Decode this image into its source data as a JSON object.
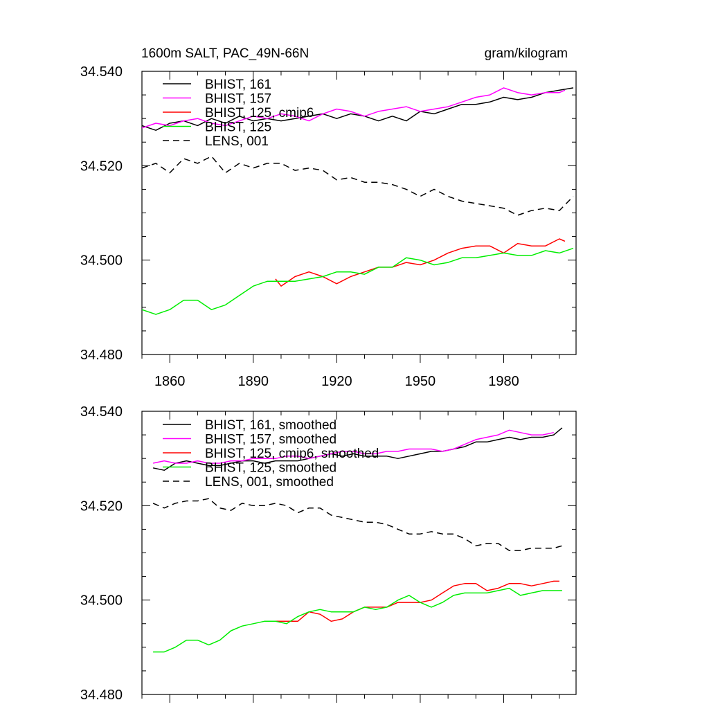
{
  "title_left": "1600m SALT, PAC_49N-66N",
  "title_right": "gram/kilogram",
  "chart_data": [
    {
      "type": "line",
      "panel": "top",
      "xlim": [
        1850,
        2006
      ],
      "ylim": [
        34.48,
        34.54
      ],
      "yticks": [
        "34.480",
        "34.500",
        "34.520",
        "34.540"
      ],
      "ytick_values": [
        34.48,
        34.5,
        34.52,
        34.54
      ],
      "xticks": [
        "1860",
        "1890",
        "1920",
        "1950",
        "1980"
      ],
      "xtick_values": [
        1860,
        1890,
        1920,
        1950,
        1980
      ],
      "show_xtick_labels": true,
      "legend_position": "top-left",
      "series": [
        {
          "name": "BHIST, 161",
          "color": "#000000",
          "dash": "solid",
          "x": [
            1850,
            1855,
            1860,
            1865,
            1870,
            1875,
            1880,
            1885,
            1890,
            1895,
            1900,
            1905,
            1910,
            1915,
            1920,
            1925,
            1930,
            1935,
            1940,
            1945,
            1950,
            1955,
            1960,
            1965,
            1970,
            1975,
            1980,
            1985,
            1990,
            1995,
            2000,
            2005
          ],
          "y": [
            34.5285,
            34.5275,
            34.529,
            34.5295,
            34.5285,
            34.53,
            34.529,
            34.5305,
            34.5295,
            34.53,
            34.5295,
            34.53,
            34.5305,
            34.531,
            34.53,
            34.531,
            34.5305,
            34.5295,
            34.5305,
            34.5295,
            34.5315,
            34.531,
            34.532,
            34.533,
            34.533,
            34.5335,
            34.5345,
            34.534,
            34.5345,
            34.5355,
            34.536,
            34.5365
          ]
        },
        {
          "name": "BHIST, 157",
          "color": "#ff00ff",
          "dash": "solid",
          "x": [
            1850,
            1855,
            1860,
            1865,
            1870,
            1875,
            1880,
            1885,
            1890,
            1895,
            1900,
            1905,
            1910,
            1915,
            1920,
            1925,
            1930,
            1935,
            1940,
            1945,
            1950,
            1955,
            1960,
            1965,
            1970,
            1975,
            1980,
            1985,
            1990,
            1995,
            2000,
            2002
          ],
          "y": [
            34.528,
            34.529,
            34.5285,
            34.5295,
            34.53,
            34.529,
            34.5285,
            34.5295,
            34.5305,
            34.53,
            34.531,
            34.5305,
            34.5295,
            34.531,
            34.532,
            34.5315,
            34.5305,
            34.5315,
            34.532,
            34.5325,
            34.5315,
            34.532,
            34.5325,
            34.5335,
            34.5345,
            34.535,
            34.5365,
            34.5355,
            34.535,
            34.5355,
            34.5355,
            34.536
          ]
        },
        {
          "name": "BHIST, 125, cmip6",
          "color": "#ff0000",
          "dash": "solid",
          "x": [
            1898,
            1900,
            1905,
            1910,
            1915,
            1920,
            1925,
            1930,
            1935,
            1940,
            1945,
            1950,
            1955,
            1960,
            1965,
            1970,
            1975,
            1980,
            1985,
            1990,
            1995,
            2000,
            2002
          ],
          "y": [
            34.496,
            34.4945,
            34.4965,
            34.4975,
            34.4965,
            34.495,
            34.4965,
            34.4975,
            34.4985,
            34.4985,
            34.4995,
            34.499,
            34.5,
            34.5015,
            34.5025,
            34.503,
            34.503,
            34.5015,
            34.5035,
            34.503,
            34.503,
            34.5045,
            34.504
          ]
        },
        {
          "name": "BHIST, 125",
          "color": "#00ee00",
          "dash": "solid",
          "x": [
            1850,
            1855,
            1860,
            1865,
            1870,
            1875,
            1880,
            1885,
            1890,
            1895,
            1900,
            1905,
            1910,
            1915,
            1920,
            1925,
            1930,
            1935,
            1940,
            1945,
            1950,
            1955,
            1960,
            1965,
            1970,
            1975,
            1980,
            1985,
            1990,
            1995,
            2000,
            2005
          ],
          "y": [
            34.4895,
            34.4885,
            34.4895,
            34.4915,
            34.4915,
            34.4895,
            34.4905,
            34.4925,
            34.4945,
            34.4955,
            34.4955,
            34.4955,
            34.496,
            34.4965,
            34.4975,
            34.4975,
            34.497,
            34.4985,
            34.4985,
            34.5005,
            34.5,
            34.499,
            34.4995,
            34.5005,
            34.5005,
            34.501,
            34.5015,
            34.501,
            34.501,
            34.502,
            34.5015,
            34.5025
          ]
        },
        {
          "name": "LENS, 001",
          "color": "#000000",
          "dash": "dashed",
          "x": [
            1850,
            1855,
            1860,
            1865,
            1870,
            1875,
            1880,
            1885,
            1890,
            1895,
            1900,
            1905,
            1910,
            1915,
            1920,
            1925,
            1930,
            1935,
            1940,
            1945,
            1950,
            1955,
            1960,
            1965,
            1970,
            1975,
            1980,
            1985,
            1990,
            1995,
            2000,
            2005
          ],
          "y": [
            34.5195,
            34.5205,
            34.5185,
            34.5215,
            34.5205,
            34.522,
            34.5185,
            34.5205,
            34.5195,
            34.5205,
            34.5205,
            34.519,
            34.5195,
            34.519,
            34.517,
            34.5175,
            34.5165,
            34.5165,
            34.516,
            34.515,
            34.5135,
            34.515,
            34.5135,
            34.5125,
            34.512,
            34.5115,
            34.511,
            34.5095,
            34.5105,
            34.511,
            34.5105,
            34.5135
          ]
        }
      ]
    },
    {
      "type": "line",
      "panel": "bottom",
      "xlim": [
        1850,
        2006
      ],
      "ylim": [
        34.48,
        34.54
      ],
      "yticks": [
        "34.480",
        "34.500",
        "34.520",
        "34.540"
      ],
      "ytick_values": [
        34.48,
        34.5,
        34.52,
        34.54
      ],
      "xticks": [
        "1860",
        "1890",
        "1920",
        "1950",
        "1980"
      ],
      "xtick_values": [
        1860,
        1890,
        1920,
        1950,
        1980
      ],
      "show_xtick_labels": false,
      "legend_position": "top-left",
      "series": [
        {
          "name": "BHIST, 161, smoothed",
          "color": "#000000",
          "dash": "solid",
          "x": [
            1854,
            1858,
            1862,
            1866,
            1870,
            1874,
            1878,
            1882,
            1886,
            1890,
            1894,
            1898,
            1902,
            1906,
            1910,
            1914,
            1918,
            1922,
            1926,
            1930,
            1934,
            1938,
            1942,
            1946,
            1950,
            1954,
            1958,
            1962,
            1966,
            1970,
            1974,
            1978,
            1982,
            1986,
            1990,
            1994,
            1998,
            2001
          ],
          "y": [
            34.528,
            34.5275,
            34.529,
            34.5295,
            34.529,
            34.5285,
            34.5285,
            34.529,
            34.5295,
            34.5295,
            34.529,
            34.5295,
            34.5295,
            34.5295,
            34.53,
            34.5305,
            34.531,
            34.5305,
            34.531,
            34.5305,
            34.5305,
            34.5305,
            34.53,
            34.5305,
            34.531,
            34.5315,
            34.5315,
            34.532,
            34.5325,
            34.5335,
            34.5335,
            34.534,
            34.5345,
            34.534,
            34.5345,
            34.5345,
            34.535,
            34.5365
          ]
        },
        {
          "name": "BHIST, 157, smoothed",
          "color": "#ff00ff",
          "dash": "solid",
          "x": [
            1854,
            1858,
            1862,
            1866,
            1870,
            1874,
            1878,
            1882,
            1886,
            1890,
            1894,
            1898,
            1902,
            1906,
            1910,
            1914,
            1918,
            1922,
            1926,
            1930,
            1934,
            1938,
            1942,
            1946,
            1950,
            1954,
            1958,
            1962,
            1966,
            1970,
            1974,
            1978,
            1982,
            1986,
            1990,
            1994,
            1998
          ],
          "y": [
            34.529,
            34.5295,
            34.529,
            34.529,
            34.5295,
            34.529,
            34.529,
            34.5295,
            34.5295,
            34.53,
            34.53,
            34.53,
            34.5305,
            34.5305,
            34.53,
            34.5305,
            34.531,
            34.5315,
            34.5315,
            34.531,
            34.531,
            34.5315,
            34.5315,
            34.532,
            34.532,
            34.532,
            34.5315,
            34.532,
            34.533,
            34.534,
            34.5345,
            34.535,
            34.536,
            34.5355,
            34.535,
            34.535,
            34.5355
          ]
        },
        {
          "name": "BHIST, 125, cmip6, smoothed",
          "color": "#ff0000",
          "dash": "solid",
          "x": [
            1898,
            1902,
            1906,
            1910,
            1914,
            1918,
            1922,
            1926,
            1930,
            1934,
            1938,
            1942,
            1946,
            1950,
            1954,
            1958,
            1962,
            1966,
            1970,
            1974,
            1978,
            1982,
            1986,
            1990,
            1994,
            1998,
            2000
          ],
          "y": [
            34.4955,
            34.4955,
            34.4955,
            34.4975,
            34.497,
            34.4955,
            34.496,
            34.4975,
            34.4985,
            34.4985,
            34.4985,
            34.4995,
            34.4995,
            34.4995,
            34.5,
            34.5015,
            34.503,
            34.5035,
            34.5035,
            34.502,
            34.5025,
            34.5035,
            34.5035,
            34.503,
            34.5035,
            34.504,
            34.504
          ]
        },
        {
          "name": "BHIST, 125, smoothed",
          "color": "#00ee00",
          "dash": "solid",
          "x": [
            1854,
            1858,
            1862,
            1866,
            1870,
            1874,
            1878,
            1882,
            1886,
            1890,
            1894,
            1898,
            1902,
            1906,
            1910,
            1914,
            1918,
            1922,
            1926,
            1930,
            1934,
            1938,
            1942,
            1946,
            1950,
            1954,
            1958,
            1962,
            1966,
            1970,
            1974,
            1978,
            1982,
            1986,
            1990,
            1994,
            1998,
            2001
          ],
          "y": [
            34.489,
            34.489,
            34.49,
            34.4915,
            34.4915,
            34.4905,
            34.4915,
            34.4935,
            34.4945,
            34.495,
            34.4955,
            34.4955,
            34.495,
            34.4965,
            34.4975,
            34.498,
            34.4975,
            34.4975,
            34.4975,
            34.4985,
            34.498,
            34.4985,
            34.5,
            34.501,
            34.4995,
            34.4985,
            34.4995,
            34.501,
            34.5015,
            34.5015,
            34.5015,
            34.502,
            34.5025,
            34.501,
            34.5015,
            34.502,
            34.502,
            34.502
          ]
        },
        {
          "name": "LENS, 001, smoothed",
          "color": "#000000",
          "dash": "dashed",
          "x": [
            1854,
            1858,
            1862,
            1866,
            1870,
            1874,
            1878,
            1882,
            1886,
            1890,
            1894,
            1898,
            1902,
            1906,
            1910,
            1914,
            1918,
            1922,
            1926,
            1930,
            1934,
            1938,
            1942,
            1946,
            1950,
            1954,
            1958,
            1962,
            1966,
            1970,
            1974,
            1978,
            1982,
            1986,
            1990,
            1994,
            1998,
            2001
          ],
          "y": [
            34.5205,
            34.5195,
            34.5205,
            34.521,
            34.521,
            34.5215,
            34.5195,
            34.519,
            34.5205,
            34.52,
            34.52,
            34.5205,
            34.52,
            34.5185,
            34.5195,
            34.5195,
            34.518,
            34.5175,
            34.517,
            34.5165,
            34.5165,
            34.516,
            34.515,
            34.514,
            34.514,
            34.5145,
            34.514,
            34.514,
            34.513,
            34.5115,
            34.512,
            34.512,
            34.5105,
            34.5105,
            34.511,
            34.511,
            34.511,
            34.5115
          ]
        }
      ]
    }
  ]
}
